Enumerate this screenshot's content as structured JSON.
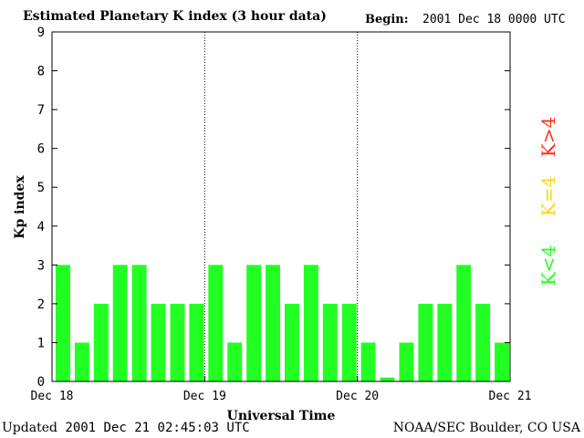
{
  "header": {
    "title": "Estimated Planetary K index (3 hour data)",
    "begin_label": "Begin:",
    "begin_value": "2001 Dec 18 0000 UTC"
  },
  "footer": {
    "updated_label": "Updated",
    "updated_value": "2001 Dec 21 02:45:03 UTC",
    "credit": "NOAA/SEC Boulder, CO USA"
  },
  "legend": {
    "low": "K<4",
    "equal": "K=4",
    "high": "K>4"
  },
  "colors": {
    "low": "#22ff22",
    "equal": "#ffd21e",
    "high": "#ff2a1a",
    "axis": "#000000"
  },
  "chart_data": {
    "type": "bar",
    "title": "Estimated Planetary K index (3 hour data)",
    "xlabel": "Universal Time",
    "ylabel": "Kp index",
    "ylim": [
      0,
      9
    ],
    "yticks": [
      "0",
      "1",
      "2",
      "3",
      "4",
      "5",
      "6",
      "7",
      "8",
      "9"
    ],
    "xticks": [
      "Dec 18",
      "Dec 19",
      "Dec 20",
      "Dec 21"
    ],
    "values": [
      3,
      1,
      2,
      3,
      3,
      2,
      2,
      2,
      3,
      1,
      3,
      3,
      2,
      3,
      2,
      2,
      1,
      0.1,
      1,
      2,
      2,
      3,
      2,
      1
    ],
    "bar_width_hours": 3,
    "day_separators": "dotted",
    "grid": false
  }
}
